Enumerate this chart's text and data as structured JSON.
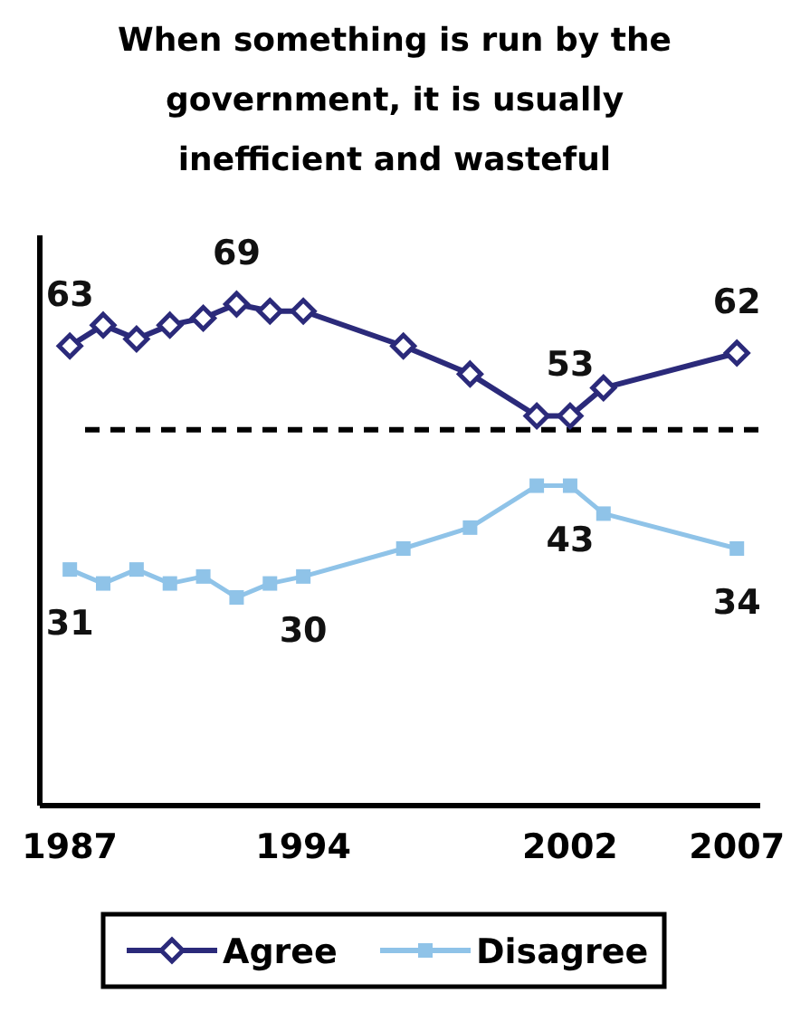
{
  "chart_data": {
    "type": "line",
    "title": "When something is run by the government, it is usually inefficient and wasteful",
    "x": [
      1987,
      1988,
      1989,
      1990,
      1991,
      1992,
      1993,
      1994,
      1997,
      1999,
      2001,
      2002,
      2003,
      2007
    ],
    "series": [
      {
        "name": "Agree",
        "color": "#2b2a7a",
        "marker": "diamond",
        "values": [
          63,
          66,
          64,
          66,
          67,
          69,
          68,
          68,
          63,
          59,
          53,
          53,
          57,
          62
        ],
        "value_labels": [
          "63",
          null,
          null,
          null,
          null,
          "69",
          null,
          null,
          null,
          null,
          null,
          "53",
          null,
          "62"
        ]
      },
      {
        "name": "Disagree",
        "color": "#8fc3e8",
        "marker": "square",
        "values": [
          31,
          29,
          31,
          29,
          30,
          27,
          29,
          30,
          34,
          37,
          43,
          43,
          39,
          34
        ],
        "value_labels": [
          "31",
          null,
          null,
          null,
          null,
          null,
          null,
          "30",
          null,
          null,
          null,
          "43",
          null,
          "34"
        ]
      }
    ],
    "xlim": [
      1986.1,
      2007.7
    ],
    "xticks": [
      1987,
      1994,
      2002,
      2007
    ],
    "tick_labels": "x",
    "ref_lines": [
      {
        "axis": "y",
        "value": 51,
        "color": "#000000",
        "line_style": "dashed"
      }
    ],
    "legend": "bottom"
  }
}
